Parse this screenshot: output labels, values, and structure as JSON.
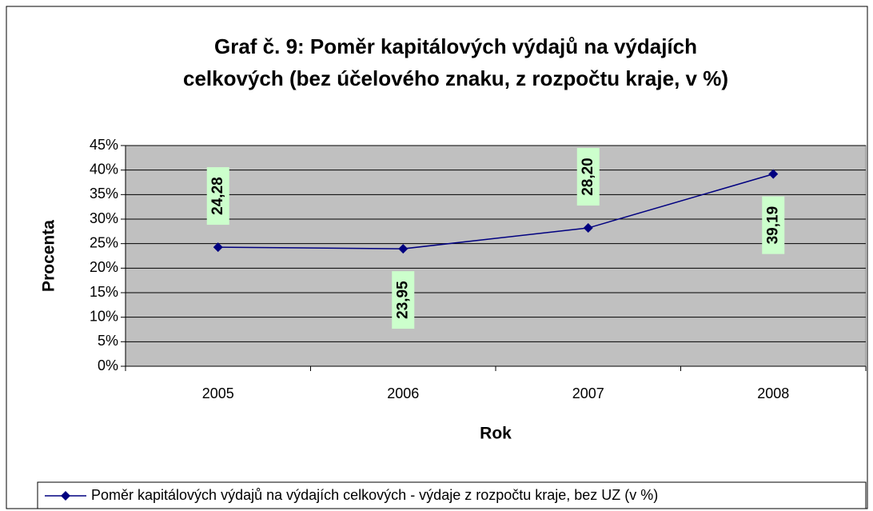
{
  "chart_data": {
    "type": "line",
    "title": [
      "Graf č. 9: Poměr kapitálových výdajů na výdajích",
      "celkových (bez účelového znaku, z rozpočtu kraje, v %)"
    ],
    "x_label": "Rok",
    "y_label": "Procenta",
    "categories": [
      "2005",
      "2006",
      "2007",
      "2008"
    ],
    "series": [
      {
        "name": "Poměr kapitálových výdajů na výdajích celkových - výdaje z rozpočtu kraje, bez UZ (v %)",
        "color": "#000080",
        "values": [
          24.28,
          23.95,
          28.2,
          39.19
        ],
        "value_labels": [
          "24,28",
          "23,95",
          "28,20",
          "39,19"
        ]
      }
    ],
    "ylim": [
      0,
      45
    ],
    "yticks": [
      {
        "value": 0,
        "label": "0%"
      },
      {
        "value": 5,
        "label": "5%"
      },
      {
        "value": 10,
        "label": "10%"
      },
      {
        "value": 15,
        "label": "15%"
      },
      {
        "value": 20,
        "label": "20%"
      },
      {
        "value": 25,
        "label": "25%"
      },
      {
        "value": 30,
        "label": "30%"
      },
      {
        "value": 35,
        "label": "35%"
      },
      {
        "value": 40,
        "label": "40%"
      },
      {
        "value": 45,
        "label": "45%"
      }
    ],
    "grid": true,
    "legend": "bottom"
  }
}
